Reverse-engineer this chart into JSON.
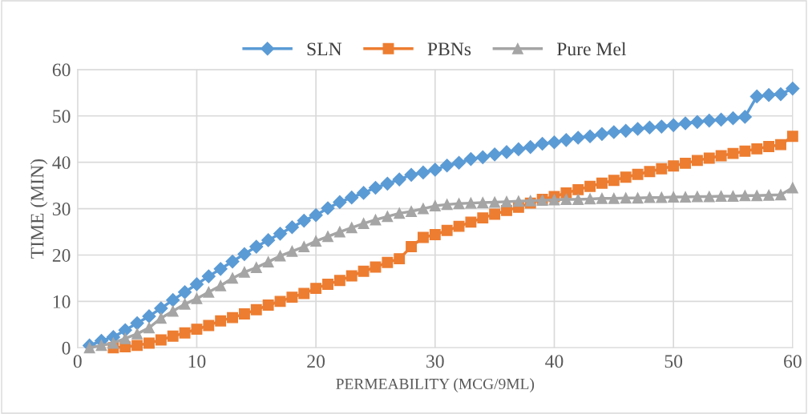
{
  "chart_data": {
    "type": "line",
    "xlabel": "PERMEABILITY (MCG/9ML)",
    "ylabel": "TIME (MIN)",
    "xlim": [
      0,
      60
    ],
    "xticks": [
      0,
      10,
      20,
      30,
      40,
      50,
      60
    ],
    "ylim": [
      0,
      60
    ],
    "yticks": [
      0,
      10,
      20,
      30,
      40,
      50,
      60
    ],
    "grid": true,
    "legend": "top",
    "line_style": "solid",
    "series": [
      {
        "name": "SLN",
        "color": "#5b9bd5",
        "marker": "diamond",
        "x": [
          1,
          2,
          3,
          4,
          5,
          6,
          7,
          8,
          9,
          10,
          11,
          12,
          13,
          14,
          15,
          16,
          17,
          18,
          19,
          20,
          21,
          22,
          23,
          24,
          25,
          26,
          27,
          28,
          29,
          30,
          31,
          32,
          33,
          34,
          35,
          36,
          37,
          38,
          39,
          40,
          41,
          42,
          43,
          44,
          45,
          46,
          47,
          48,
          49,
          50,
          51,
          52,
          53,
          54,
          55,
          56,
          57,
          58,
          59,
          60
        ],
        "values": [
          0.5,
          1.5,
          2.3,
          3.8,
          5.3,
          6.8,
          8.5,
          10.3,
          12,
          13.7,
          15.4,
          17,
          18.6,
          20.2,
          21.8,
          23.2,
          24.6,
          26,
          27.4,
          28.6,
          30.1,
          31.4,
          32.4,
          33.4,
          34.5,
          35.4,
          36.3,
          37.3,
          37.8,
          38.4,
          39.3,
          39.9,
          40.7,
          41.1,
          41.7,
          42.2,
          42.8,
          43.3,
          44,
          44.3,
          44.8,
          45.3,
          45.6,
          46.1,
          46.5,
          46.8,
          47.2,
          47.5,
          47.7,
          48,
          48.4,
          48.7,
          49,
          49.2,
          49.5,
          49.8,
          54.2,
          54.5,
          54.7,
          55.9
        ]
      },
      {
        "name": "PBNs",
        "color": "#ed7d31",
        "marker": "square",
        "x": [
          3,
          4,
          5,
          6,
          7,
          8,
          9,
          10,
          11,
          12,
          13,
          14,
          15,
          16,
          17,
          18,
          19,
          20,
          21,
          22,
          23,
          24,
          25,
          26,
          27,
          28,
          29,
          30,
          31,
          32,
          33,
          34,
          35,
          36,
          37,
          38,
          39,
          40,
          41,
          42,
          43,
          44,
          45,
          46,
          47,
          48,
          49,
          50,
          51,
          52,
          53,
          54,
          55,
          56,
          57,
          58,
          59,
          60
        ],
        "values": [
          0,
          0.2,
          0.5,
          1,
          1.7,
          2.5,
          3.2,
          4,
          4.8,
          5.8,
          6.5,
          7.3,
          8.2,
          9.2,
          10,
          10.9,
          11.7,
          12.8,
          13.7,
          14.5,
          15.5,
          16.5,
          17.4,
          18.4,
          19.2,
          21.8,
          23.8,
          24.4,
          25.3,
          26.2,
          27.1,
          28,
          28.8,
          29.6,
          30.3,
          31.2,
          32,
          32.6,
          33.4,
          34.1,
          34.8,
          35.5,
          36.1,
          36.8,
          37.4,
          38,
          38.6,
          39.2,
          39.8,
          40.4,
          40.9,
          41.4,
          41.9,
          42.4,
          42.9,
          43.4,
          43.8,
          45.6
        ]
      },
      {
        "name": "Pure Mel",
        "color": "#a5a5a5",
        "marker": "triangle",
        "x": [
          1,
          2,
          3,
          4,
          5,
          6,
          7,
          8,
          9,
          10,
          11,
          12,
          13,
          14,
          15,
          16,
          17,
          18,
          19,
          20,
          21,
          22,
          23,
          24,
          25,
          26,
          27,
          28,
          29,
          30,
          31,
          32,
          33,
          34,
          35,
          36,
          37,
          38,
          39,
          40,
          41,
          42,
          43,
          44,
          45,
          46,
          47,
          48,
          49,
          50,
          51,
          52,
          53,
          54,
          55,
          56,
          57,
          58,
          59,
          60
        ],
        "values": [
          0,
          0.5,
          1,
          2,
          3,
          4.3,
          6.4,
          7.9,
          9.4,
          10.6,
          12,
          13.4,
          15,
          16.3,
          17.3,
          18.5,
          19.8,
          20.8,
          21.8,
          23,
          24,
          25,
          25.9,
          26.8,
          27.6,
          28.3,
          29,
          29.4,
          30,
          30.6,
          30.9,
          31.1,
          31.2,
          31.3,
          31.4,
          31.5,
          31.6,
          31.7,
          31.8,
          31.9,
          32,
          32,
          32.1,
          32.2,
          32.2,
          32.3,
          32.3,
          32.4,
          32.4,
          32.5,
          32.5,
          32.6,
          32.6,
          32.7,
          32.7,
          32.8,
          32.8,
          32.9,
          33,
          34.5
        ]
      }
    ]
  }
}
